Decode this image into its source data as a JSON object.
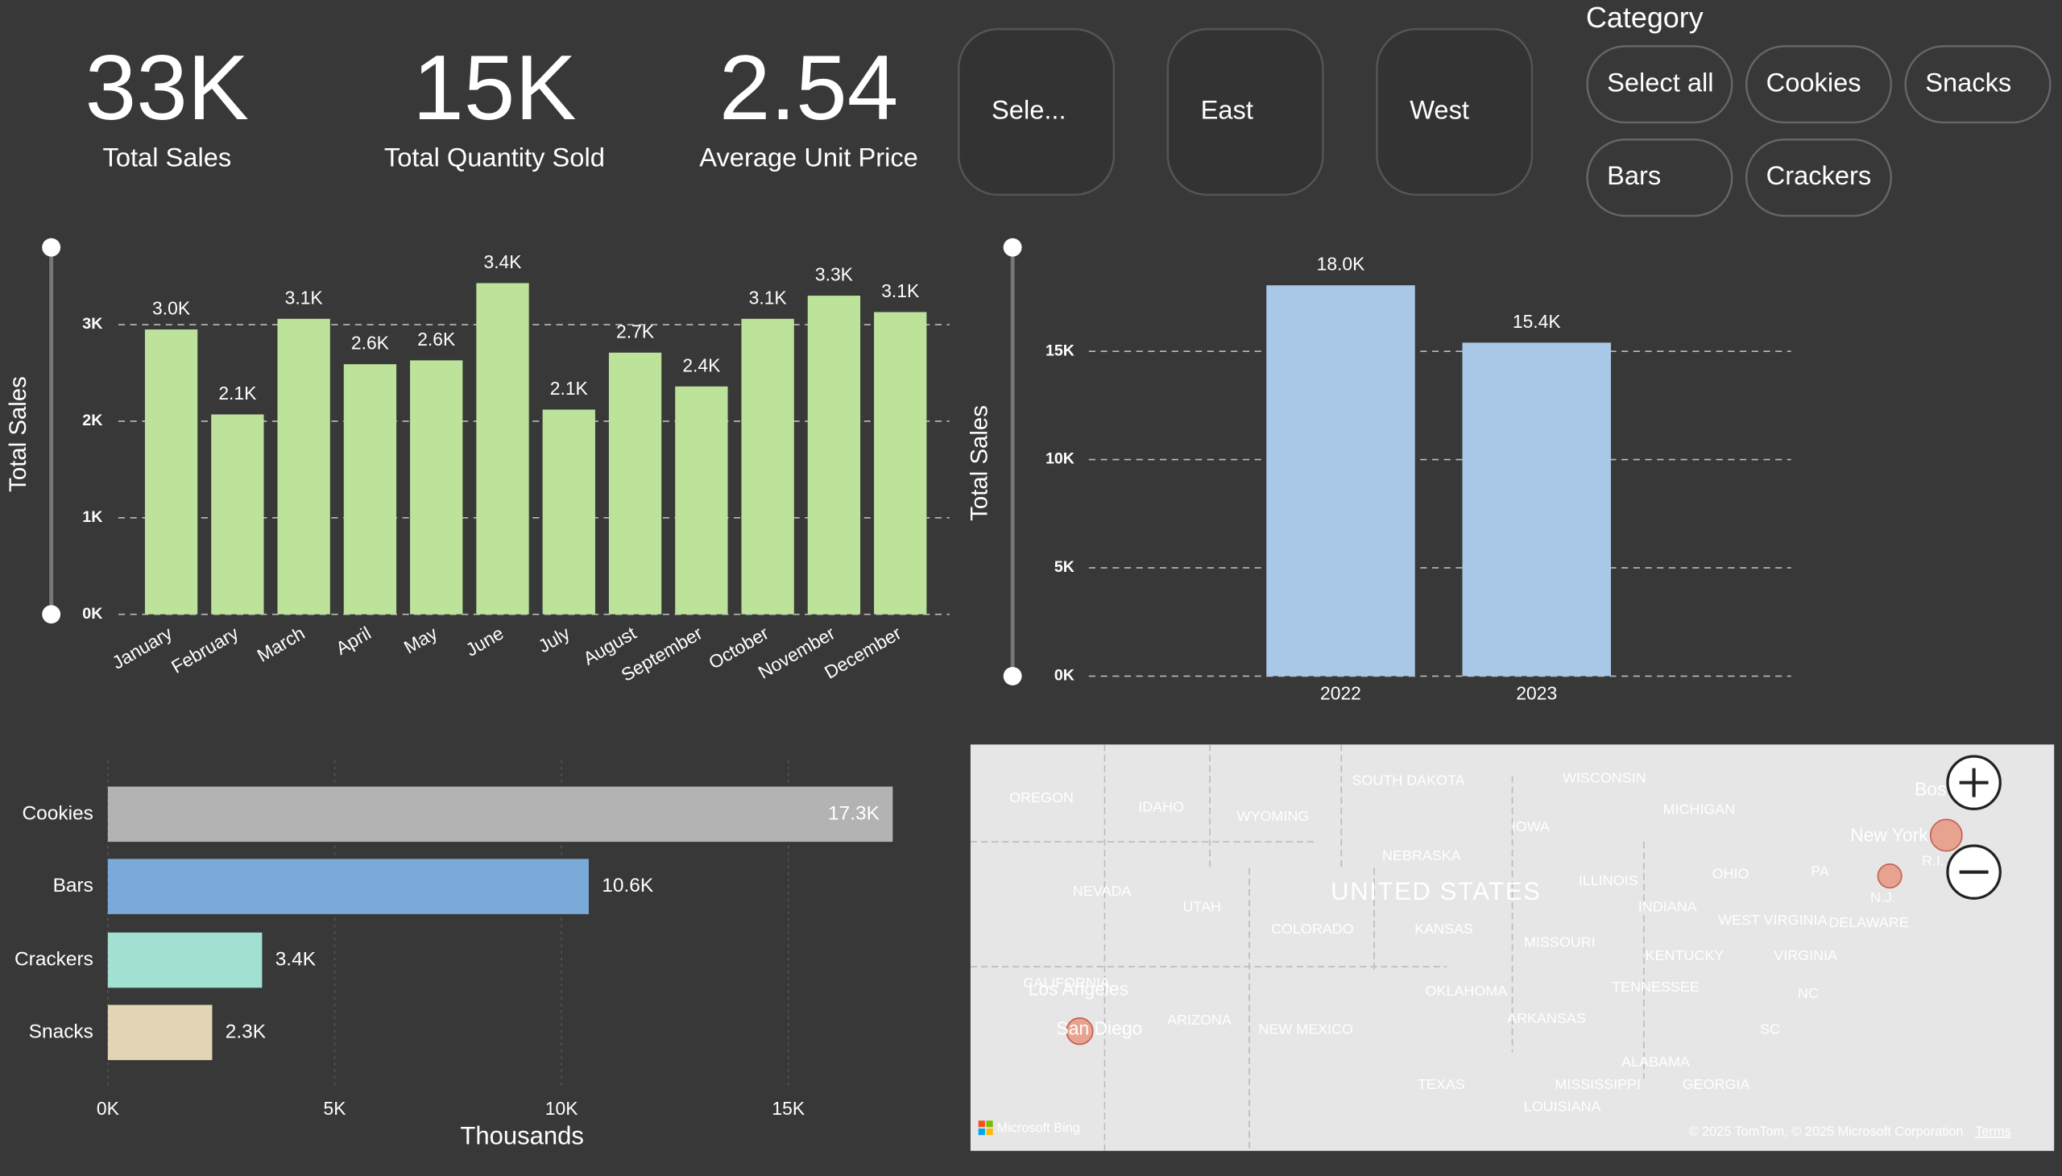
{
  "cards": [
    {
      "value": "33K",
      "label": "Total Sales"
    },
    {
      "value": "15K",
      "label": "Total Quantity Sold"
    },
    {
      "value": "2.54",
      "label": "Average Unit Price"
    }
  ],
  "region_slicer": {
    "items": [
      "Sele...",
      "East",
      "West"
    ]
  },
  "category_slicer": {
    "title": "Category",
    "items": [
      "Select all",
      "Cookies",
      "Snacks",
      "Bars",
      "Crackers"
    ]
  },
  "chart_data": [
    {
      "type": "bar",
      "y_label": "Total Sales",
      "categories": [
        "January",
        "February",
        "March",
        "April",
        "May",
        "June",
        "July",
        "August",
        "September",
        "October",
        "November",
        "December"
      ],
      "values": [
        2950,
        2070,
        3060,
        2590,
        2630,
        3430,
        2120,
        2710,
        2360,
        3060,
        3300,
        3130
      ],
      "value_labels": [
        "3.0K",
        "2.1K",
        "3.1K",
        "2.6K",
        "2.6K",
        "3.4K",
        "2.1K",
        "2.7K",
        "2.4K",
        "3.1K",
        "3.3K",
        "3.1K"
      ],
      "color": "#bde39a",
      "ylim": [
        0,
        3800
      ],
      "yticks": [
        {
          "value": 0,
          "label": "0K"
        },
        {
          "value": 1000,
          "label": "1K"
        },
        {
          "value": 2000,
          "label": "2K"
        },
        {
          "value": 3000,
          "label": "3K"
        }
      ],
      "grid": true
    },
    {
      "type": "bar",
      "y_label": "Total Sales",
      "categories": [
        "2022",
        "2023"
      ],
      "values": [
        18050,
        15400
      ],
      "value_labels": [
        "18.0K",
        "15.4K"
      ],
      "color": "#a9c8e8",
      "ylim": [
        0,
        19800
      ],
      "yticks": [
        {
          "value": 0,
          "label": "0K"
        },
        {
          "value": 5000,
          "label": "5K"
        },
        {
          "value": 10000,
          "label": "10K"
        },
        {
          "value": 15000,
          "label": "15K"
        }
      ],
      "grid": true
    },
    {
      "type": "bar",
      "horizontal": true,
      "x_label": "Thousands",
      "categories": [
        "Cookies",
        "Bars",
        "Crackers",
        "Snacks"
      ],
      "values": [
        17300,
        10600,
        3400,
        2300
      ],
      "value_labels": [
        "17.3K",
        "10.6K",
        "3.4K",
        "2.3K"
      ],
      "colors": [
        "#b3b3b3",
        "#7aaad8",
        "#a2e0d2",
        "#e2d5b5"
      ],
      "xlim": [
        0,
        18000
      ],
      "xticks": [
        {
          "value": 0,
          "label": "0K"
        },
        {
          "value": 5000,
          "label": "5K"
        },
        {
          "value": 10000,
          "label": "10K"
        },
        {
          "value": 15000,
          "label": "15K"
        }
      ],
      "grid": true
    }
  ],
  "map": {
    "country_label": "UNITED STATES",
    "state_labels": [
      "OREGON",
      "IDAHO",
      "WYOMING",
      "SOUTH DAKOTA",
      "WISCONSIN",
      "MICHIGAN",
      "IOWA",
      "NEBRASKA",
      "NEVADA",
      "UTAH",
      "ILLINOIS",
      "OHIO",
      "PA",
      "INDIANA",
      "COLORADO",
      "KANSAS",
      "MISSOURI",
      "WEST VIRGINIA",
      "DELAWARE",
      "KENTUCKY",
      "VIRGINIA",
      "CALIFORNIA",
      "OKLAHOMA",
      "TENNESSEE",
      "NC",
      "ARIZONA",
      "NEW MEXICO",
      "ARKANSAS",
      "SC",
      "ALABAMA",
      "TEXAS",
      "MISSISSIPPI",
      "GEORGIA",
      "LOUISIANA",
      "N.J.",
      "R.I."
    ],
    "city_labels": [
      "Los Angeles",
      "San Diego",
      "New York",
      "Bos"
    ],
    "logo": "Microsoft Bing",
    "attribution": "© 2025 TomTom, © 2025 Microsoft Corporation",
    "terms": "Terms"
  }
}
